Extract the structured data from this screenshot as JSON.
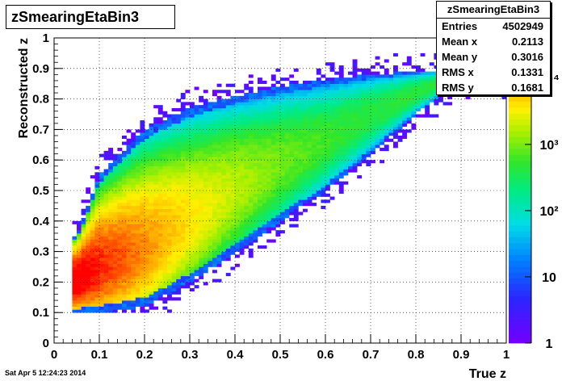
{
  "chart_data": {
    "type": "heatmap",
    "title": "zSmearingEtaBin3",
    "xlabel": "True z",
    "ylabel": "Reconstructed z",
    "xlim": [
      0,
      1
    ],
    "ylim": [
      0,
      1
    ],
    "x_ticks": [
      "0",
      "0.1",
      "0.2",
      "0.3",
      "0.4",
      "0.5",
      "0.6",
      "0.7",
      "0.8",
      "0.9",
      "1"
    ],
    "y_ticks": [
      "0",
      "0.1",
      "0.2",
      "0.3",
      "0.4",
      "0.5",
      "0.6",
      "0.7",
      "0.8",
      "0.9",
      "1"
    ],
    "z_scale": "log",
    "z_ticks": [
      "1",
      "10",
      "10²",
      "10³",
      "10⁴"
    ],
    "grid": true,
    "bins": [
      100,
      100
    ],
    "band": {
      "description_points_true_z": [
        0.05,
        0.1,
        0.2,
        0.3,
        0.4,
        0.5,
        0.6,
        0.7,
        0.8,
        0.9
      ],
      "upper_edge_reco_z": [
        0.35,
        0.55,
        0.7,
        0.77,
        0.81,
        0.84,
        0.86,
        0.88,
        0.89,
        0.9
      ],
      "lower_edge_reco_z": [
        0.1,
        0.1,
        0.12,
        0.2,
        0.3,
        0.4,
        0.5,
        0.62,
        0.75,
        0.86
      ],
      "peak_true_z": 0.1,
      "peak_reco_z": 0.1
    },
    "stats": {
      "name": "zSmearingEtaBin3",
      "entries_label": "Entries",
      "entries": "4502949",
      "mean_x_label": "Mean x",
      "mean_x": "0.2113",
      "mean_y_label": "Mean y",
      "mean_y": "0.3016",
      "rms_x_label": "RMS x",
      "rms_x": "0.1331",
      "rms_y_label": "RMS y",
      "rms_y": "0.1681"
    }
  },
  "footer": {
    "datestamp": "Sat Apr  5 12:24:23 2014"
  }
}
